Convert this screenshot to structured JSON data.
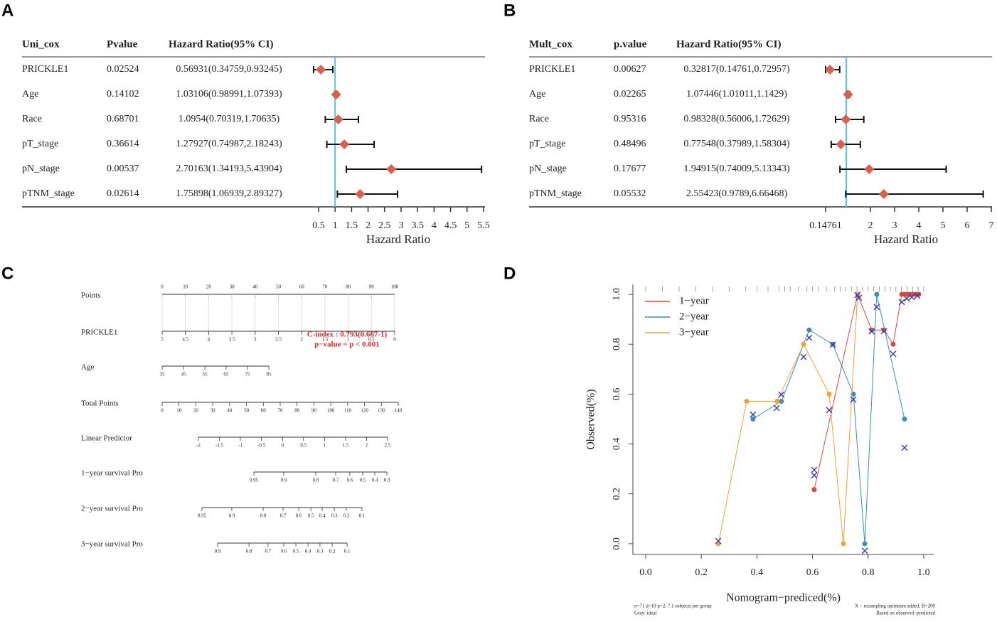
{
  "chart_data": [
    {
      "type": "forest",
      "panel": "A",
      "columns": [
        "Uni_cox",
        "Pvalue",
        "Hazard Ratio(95% CI)"
      ],
      "rows": [
        "PRICKLE1",
        "Age",
        "Race",
        "pT_stage",
        "pN_stage",
        "pTNM_stage"
      ],
      "pvalues": [
        0.02524,
        0.14102,
        0.68701,
        0.36614,
        0.00537,
        0.02614
      ],
      "hr_labels": [
        "0.56931(0.34759,0.93245)",
        "1.03106(0.98991,1.07393)",
        "1.0954(0.70319,1.70635)",
        "1.27927(0.74987,2.18243)",
        "2.70163(1.34193,5.43904)",
        "1.75898(1.06939,2.89327)"
      ],
      "hr": [
        0.56931,
        1.03106,
        1.0954,
        1.27927,
        2.70163,
        1.75898
      ],
      "lower": [
        0.34759,
        0.98991,
        0.70319,
        0.74987,
        1.34193,
        1.06939
      ],
      "upper": [
        0.93245,
        1.07393,
        1.70635,
        2.18243,
        5.43904,
        2.89327
      ],
      "xlim": [
        0.5,
        5.5
      ],
      "xticks": [
        0.5,
        1,
        1.5,
        2,
        2.5,
        3,
        3.5,
        4,
        4.5,
        5,
        5.5
      ],
      "xlabel": "Hazard Ratio",
      "reference": 1,
      "color": "#d9604f",
      "reference_color": "#5bc4d6"
    },
    {
      "type": "forest",
      "panel": "B",
      "columns": [
        "Mult_cox",
        "p.value",
        "Hazard Ratio(95% CI)"
      ],
      "rows": [
        "PRICKLE1",
        "Age",
        "Race",
        "pT_stage",
        "pN_stage",
        "pTNM_stage"
      ],
      "pvalues": [
        0.00627,
        0.02265,
        0.95316,
        0.48496,
        0.17677,
        0.05532
      ],
      "hr_labels": [
        "0.32817(0.14761,0.72957)",
        "1.07446(1.01011,1.1429)",
        "0.98328(0.56006,1.72629)",
        "0.77548(0.37989,1.58304)",
        "1.94915(0.74009,5.13343)",
        "2.55423(0.9789,6.66468)"
      ],
      "hr": [
        0.32817,
        1.07446,
        0.98328,
        0.77548,
        1.94915,
        2.55423
      ],
      "lower": [
        0.14761,
        1.01011,
        0.56006,
        0.37989,
        0.74009,
        0.9789
      ],
      "upper": [
        0.72957,
        1.1429,
        1.72629,
        1.58304,
        5.13343,
        6.66468
      ],
      "xlim": [
        0.14761,
        7
      ],
      "xticks": [
        0.14761,
        2,
        3,
        4,
        5,
        6,
        7
      ],
      "xlabel": "Hazard Ratio",
      "reference": 1,
      "color": "#d9604f",
      "reference_color": "#5bc4d6"
    },
    {
      "type": "nomogram",
      "panel": "C",
      "points_lim": [
        0,
        100
      ],
      "total_lim": [
        0,
        140
      ],
      "rows": [
        {
          "name": "Points",
          "scale": "points",
          "ticks": [
            0,
            10,
            20,
            30,
            40,
            50,
            60,
            70,
            80,
            90,
            100
          ]
        },
        {
          "name": "PRICKLE1",
          "scale": "points",
          "ticks": [
            5,
            4.5,
            4,
            3.5,
            3,
            2.5,
            2,
            1.5,
            1,
            0.5,
            0
          ],
          "at": [
            0,
            10,
            20,
            30,
            40,
            50,
            60,
            70,
            80,
            90,
            100
          ]
        },
        {
          "name": "Age",
          "scale": "points",
          "ticks": [
            35,
            45,
            55,
            65,
            75,
            85
          ],
          "at": [
            0,
            9.2,
            18.4,
            27.5,
            36.7,
            45.9
          ]
        },
        {
          "name": "Total Points",
          "scale": "total",
          "ticks": [
            0,
            10,
            20,
            30,
            40,
            50,
            60,
            70,
            80,
            90,
            100,
            110,
            120,
            130,
            140
          ]
        },
        {
          "name": "Linear Predictor",
          "scale": "total",
          "ticks": [
            -2,
            -1.5,
            -1,
            -0.5,
            0,
            0.5,
            1,
            1.5,
            2,
            2.5
          ],
          "at": [
            21.5,
            34,
            46.4,
            58.9,
            71.4,
            83.8,
            96.3,
            108.8,
            121.2,
            133.7
          ]
        },
        {
          "name": "1−year survival Pro",
          "scale": "total",
          "ticks": [
            0.95,
            0.9,
            0.8,
            0.7,
            0.6,
            0.5,
            0.4,
            0.3
          ],
          "at": [
            54.4,
            72.1,
            91.1,
            102.9,
            111.3,
            118.9,
            126.1,
            133.3
          ]
        },
        {
          "name": "2−year survival Pro",
          "scale": "total",
          "ticks": [
            0.95,
            0.9,
            0.8,
            0.7,
            0.6,
            0.5,
            0.4,
            0.3,
            0.2,
            0.1
          ],
          "at": [
            23.6,
            41.3,
            59.9,
            71.7,
            81,
            88.2,
            94.9,
            102.1,
            109.2,
            118.5
          ]
        },
        {
          "name": "3−year survival Pro",
          "scale": "total",
          "ticks": [
            0.9,
            0.8,
            0.7,
            0.6,
            0.5,
            0.4,
            0.3,
            0.2,
            0.1
          ],
          "at": [
            32.9,
            51.5,
            62.8,
            72.1,
            79.3,
            86.5,
            93.6,
            100.8,
            109.7
          ]
        }
      ],
      "annotations": [
        "C-index : 0.793(0.687-1)",
        "p−value = p < 0.001"
      ],
      "annotation_color": "#e02828"
    },
    {
      "type": "line",
      "panel": "D",
      "xlabel": "Nomogram−prediced(%)",
      "ylabel": "Observed(%)",
      "xlim": [
        -0.046,
        1.036
      ],
      "ylim": [
        -0.043,
        1.04
      ],
      "xticks": [
        {
          "value": 0,
          "label": "0.0"
        },
        0.2,
        0.4,
        0.6,
        0.8,
        {
          "value": 1,
          "label": "1.0"
        }
      ],
      "yticks": [
        {
          "value": 0,
          "label": "0.0"
        },
        0.2,
        0.4,
        0.6,
        0.8,
        {
          "value": 1,
          "label": "1.0"
        }
      ],
      "legend": "upper left",
      "rug": [
        0,
        0.06,
        0.12,
        0.18,
        0.24,
        0.3,
        0.36,
        0.4,
        0.44,
        0.48,
        0.5,
        0.52,
        0.55,
        0.58,
        0.6,
        0.62,
        0.65,
        0.68,
        0.7,
        0.72,
        0.74,
        0.76,
        0.78,
        0.8,
        0.82,
        0.84,
        0.86,
        0.88,
        0.9,
        0.92,
        0.94,
        0.96,
        0.98,
        1
      ],
      "series": [
        {
          "name": "1−year",
          "color": "#d94a3c",
          "x": [
            0.606,
            0.762,
            0.813,
            0.857,
            0.89,
            0.921,
            0.931,
            0.941,
            0.951,
            0.961,
            0.972,
            0.982
          ],
          "y": [
            0.217,
            1.0,
            0.857,
            0.857,
            0.8,
            1.0,
            1.0,
            1.0,
            1.0,
            1.0,
            1.0,
            1.0
          ]
        },
        {
          "name": "2−year",
          "color": "#3a8fb5",
          "x": [
            0.386,
            0.488,
            0.588,
            0.673,
            0.747,
            0.788,
            0.831,
            0.931
          ],
          "y": [
            0.5,
            0.571,
            0.857,
            0.8,
            0.6,
            0.0,
            1.0,
            0.5
          ]
        },
        {
          "name": "3−year",
          "color": "#eea23a",
          "x": [
            0.261,
            0.363,
            0.473,
            0.568,
            0.66,
            0.711,
            0.762
          ],
          "y": [
            0.0,
            0.571,
            0.571,
            0.8,
            0.6,
            0.0,
            1.0
          ]
        },
        {
          "color": "#3b3bb0",
          "marker": "x",
          "x": [
            0.261,
            0.386,
            0.471,
            0.488,
            0.568,
            0.588,
            0.606,
            0.606,
            0.66,
            0.673,
            0.747,
            0.762,
            0.767,
            0.788,
            0.813,
            0.831,
            0.857,
            0.89,
            0.921,
            0.931,
            0.939,
            0.957,
            0.977
          ],
          "y": [
            0.011,
            0.518,
            0.544,
            0.598,
            0.749,
            0.826,
            0.296,
            0.274,
            0.536,
            0.798,
            0.578,
            0.997,
            0.986,
            -0.028,
            0.852,
            0.949,
            0.852,
            0.761,
            0.969,
            0.385,
            0.983,
            0.989,
            0.994
          ]
        }
      ],
      "notes": [
        "n=71 d=19 p=2, 7.1 subjects per group",
        "Gray: ideal",
        "X − resampling optimism added, B=200",
        "Based on observed−predicted"
      ]
    }
  ]
}
